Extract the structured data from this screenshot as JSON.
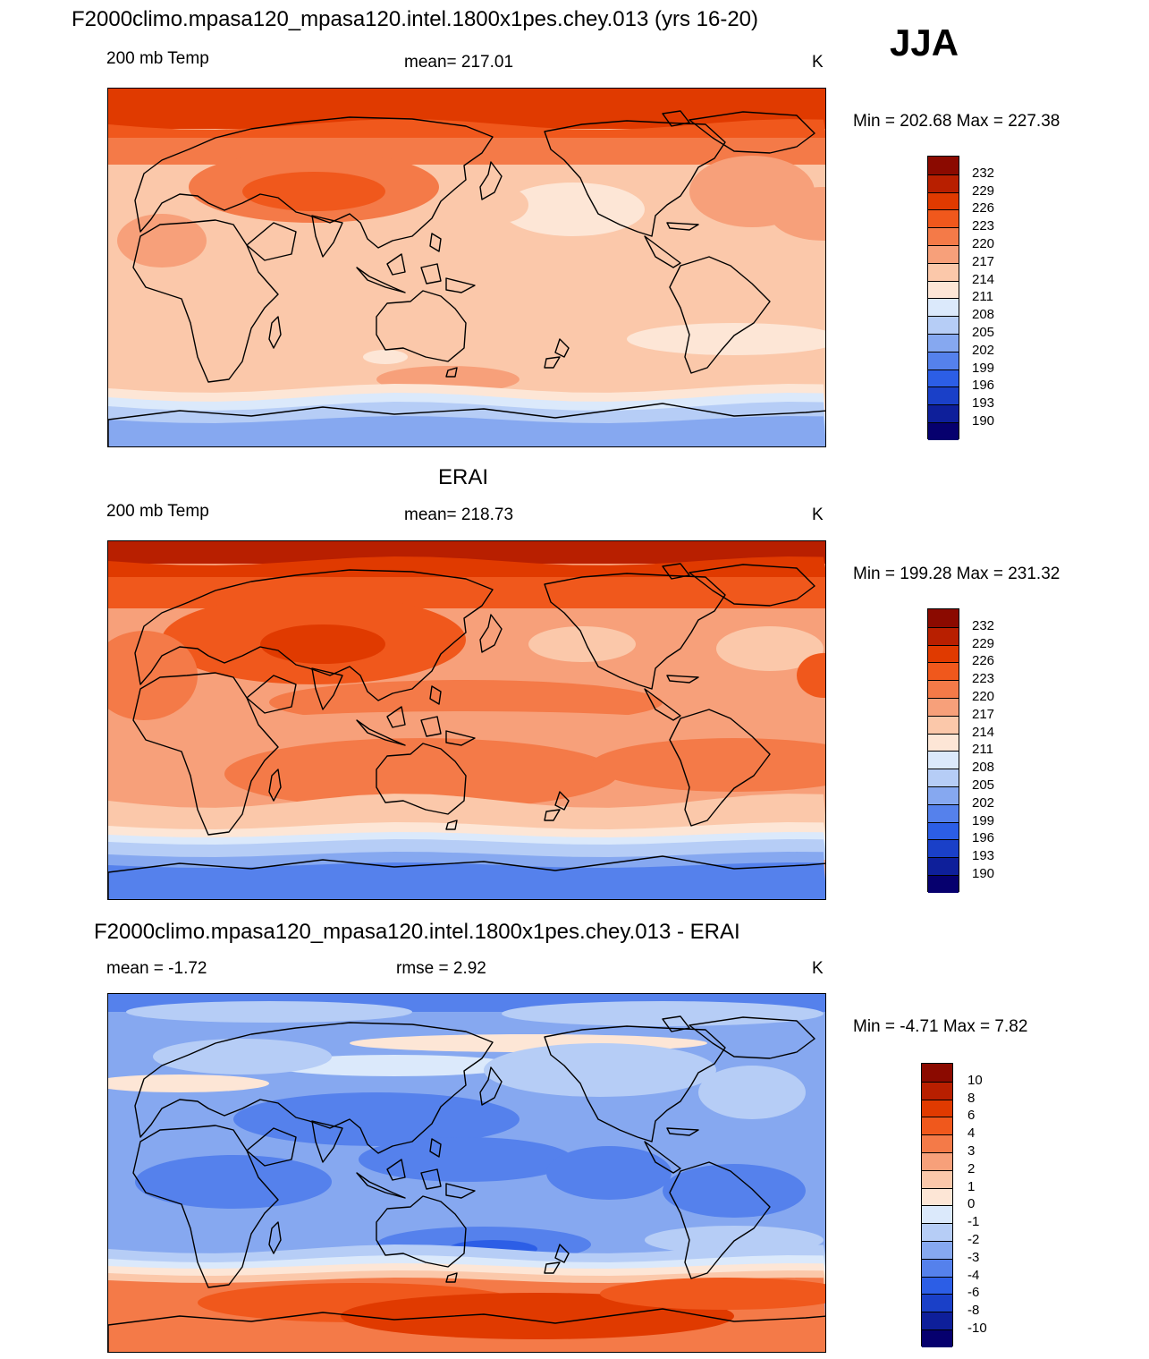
{
  "header": {
    "title": "F2000climo.mpasa120_mpasa120.intel.1800x1pes.chey.013 (yrs 16-20)",
    "season": "JJA"
  },
  "panels": [
    {
      "title": "",
      "left_label": "200 mb Temp",
      "center_label": "mean= 217.01",
      "units": "K",
      "minmax": "Min = 202.68 Max = 227.38",
      "colorbar_labels": [
        "232",
        "229",
        "226",
        "223",
        "220",
        "217",
        "214",
        "211",
        "208",
        "205",
        "202",
        "199",
        "196",
        "193",
        "190"
      ]
    },
    {
      "title": "ERAI",
      "left_label": "200 mb Temp",
      "center_label": "mean= 218.73",
      "units": "K",
      "minmax": "Min = 199.28 Max = 231.32",
      "colorbar_labels": [
        "232",
        "229",
        "226",
        "223",
        "220",
        "217",
        "214",
        "211",
        "208",
        "205",
        "202",
        "199",
        "196",
        "193",
        "190"
      ]
    },
    {
      "title": "F2000climo.mpasa120_mpasa120.intel.1800x1pes.chey.013 - ERAI",
      "left_label": "mean =  -1.72",
      "center_label": "rmse =   2.92",
      "units": "K",
      "minmax": "Min =  -4.71 Max =   7.82",
      "colorbar_labels": [
        "10",
        "8",
        "6",
        "4",
        "3",
        "2",
        "1",
        "0",
        "-1",
        "-2",
        "-3",
        "-4",
        "-6",
        "-8",
        "-10"
      ]
    }
  ],
  "colors": {
    "scale": [
      "#8b0a00",
      "#b81f00",
      "#e03a00",
      "#f0581c",
      "#f47a48",
      "#f7a07a",
      "#fbc8aa",
      "#fde6d6",
      "#dbe9fb",
      "#b6cdf6",
      "#86a8f0",
      "#5581ec",
      "#2c5ee6",
      "#1a40c8",
      "#0e1f9a",
      "#06006e"
    ],
    "coast": "#000000"
  }
}
